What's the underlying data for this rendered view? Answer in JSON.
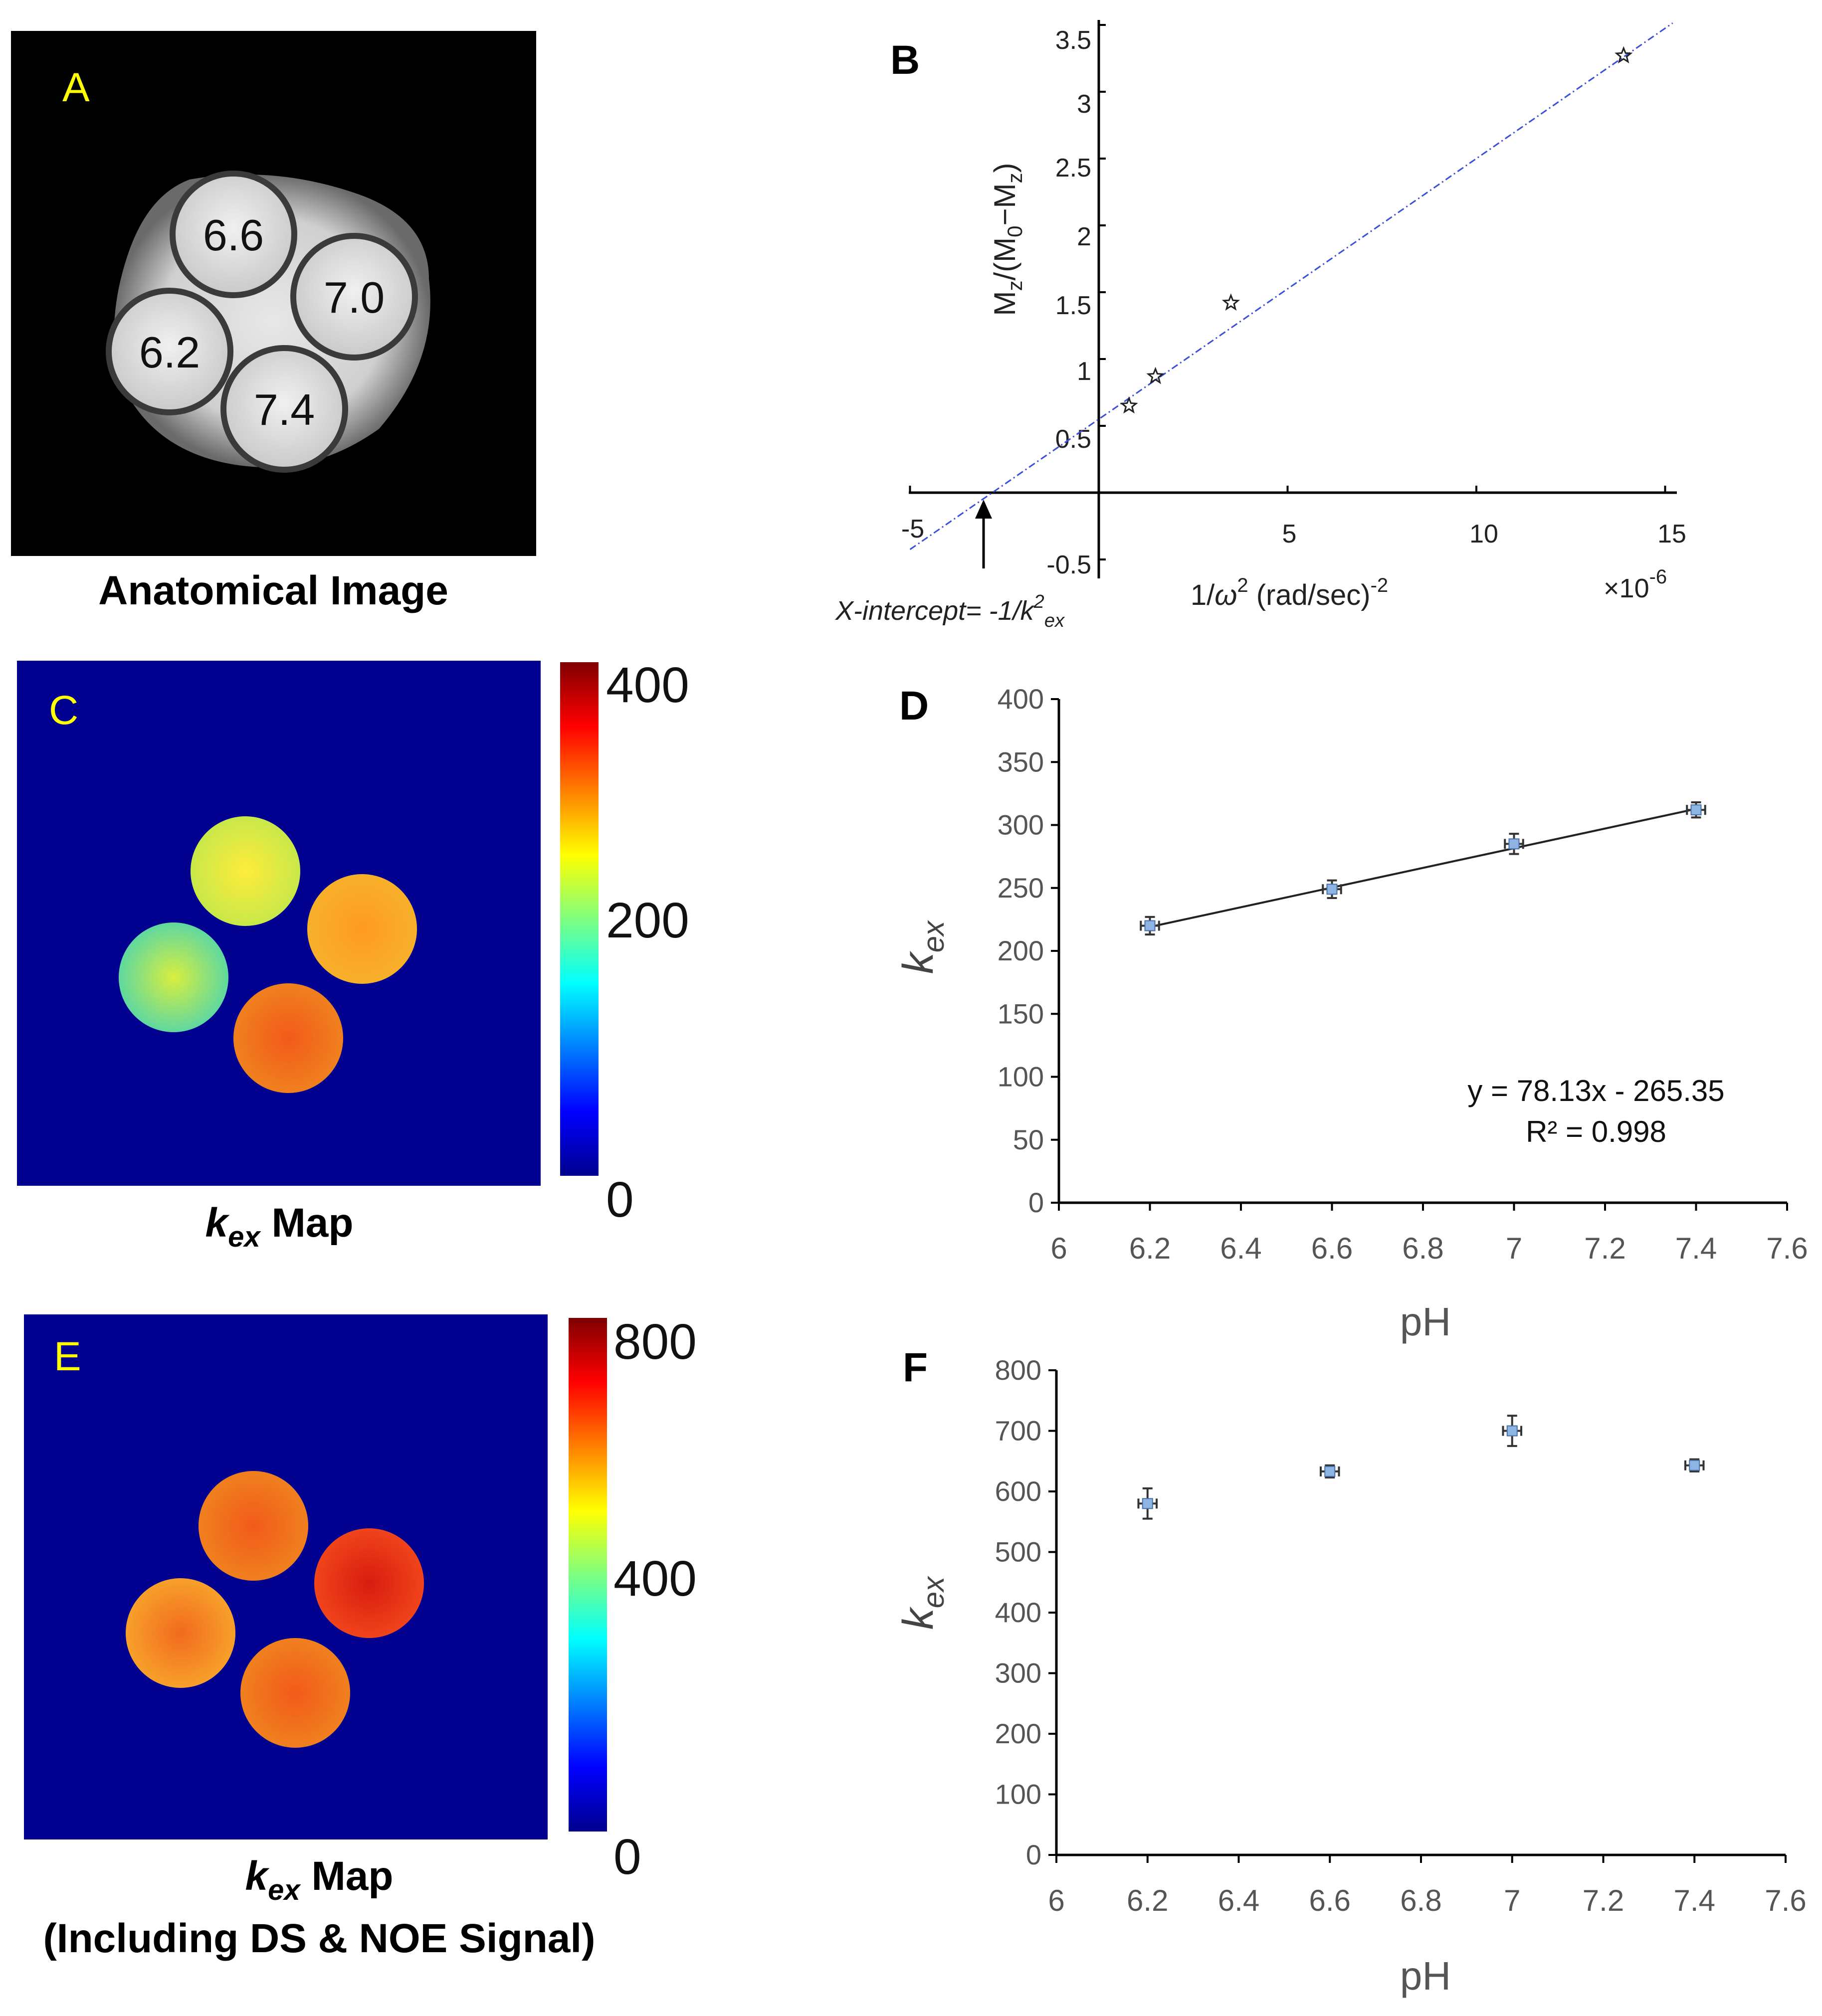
{
  "panels": {
    "A": {
      "letter": "A",
      "caption": "Anatomical Image",
      "vial_labels": [
        "6.6",
        "7.0",
        "6.2",
        "7.4"
      ]
    },
    "B": {
      "letter": "B",
      "y_tick_labels": [
        "3.5",
        "3",
        "2.5",
        "2",
        "1.5",
        "1",
        "0.5",
        "-0.5"
      ],
      "x_tick_labels": [
        "-5",
        "5",
        "10",
        "15"
      ],
      "x_exponent": "×10",
      "x_exponent_power": "-6",
      "annotation_prefix": "X-intercept= -1/k",
      "annotation_sup": "2",
      "annotation_sub": "ex"
    },
    "C": {
      "letter": "C",
      "caption_k": "k",
      "caption_sub": "ex",
      "caption_rest": " Map",
      "colorbar_labels": [
        "400",
        "200",
        "0"
      ]
    },
    "D": {
      "letter": "D",
      "ylabel_k": "k",
      "ylabel_sub": "ex",
      "xlabel": "pH",
      "equation": "y = 78.13x - 265.35",
      "r2": "R² = 0.998"
    },
    "E": {
      "letter": "E",
      "caption_k": "k",
      "caption_sub": "ex",
      "caption_rest": " Map",
      "caption_line2": "(Including DS & NOE Signal)",
      "colorbar_labels": [
        "800",
        "400",
        "0"
      ]
    },
    "F": {
      "letter": "F",
      "ylabel_k": "k",
      "ylabel_sub": "ex",
      "xlabel": "pH"
    }
  },
  "chart_data": [
    {
      "panel": "B",
      "type": "scatter",
      "title": "",
      "xlabel": "1/ω² (rad/sec)⁻²",
      "ylabel": "Mz/(M0−Mz)",
      "x_scale": "×10^-6",
      "xlim": [
        -5,
        15
      ],
      "ylim": [
        -0.5,
        3.5
      ],
      "x": [
        0.8,
        1.5,
        3.5,
        13.9
      ],
      "y": [
        0.65,
        0.87,
        1.42,
        3.27
      ],
      "fit": {
        "slope": 0.195,
        "intercept": 0.55,
        "x_range": [
          -5,
          15.2
        ]
      },
      "series_color": "#3b4fd8"
    },
    {
      "panel": "D",
      "type": "scatter",
      "title": "",
      "xlabel": "pH",
      "ylabel": "kex",
      "xlim": [
        6,
        7.6
      ],
      "ylim": [
        0,
        400
      ],
      "x_ticks": [
        6,
        6.2,
        6.4,
        6.6,
        6.8,
        7,
        7.2,
        7.4,
        7.6
      ],
      "y_ticks": [
        0,
        50,
        100,
        150,
        200,
        250,
        300,
        350,
        400
      ],
      "x": [
        6.2,
        6.6,
        7.0,
        7.4
      ],
      "y": [
        220,
        249,
        285,
        312
      ],
      "y_err": [
        7,
        7,
        8,
        6
      ],
      "x_err": [
        0.02,
        0.02,
        0.02,
        0.02
      ],
      "fit": {
        "slope": 78.13,
        "intercept": -265.35,
        "x_range": [
          6.2,
          7.4
        ]
      }
    },
    {
      "panel": "F",
      "type": "scatter",
      "title": "",
      "xlabel": "pH",
      "ylabel": "kex",
      "xlim": [
        6,
        7.6
      ],
      "ylim": [
        0,
        800
      ],
      "x_ticks": [
        6,
        6.2,
        6.4,
        6.6,
        6.8,
        7,
        7.2,
        7.4,
        7.6
      ],
      "y_ticks": [
        0,
        100,
        200,
        300,
        400,
        500,
        600,
        700,
        800
      ],
      "x": [
        6.2,
        6.6,
        7.0,
        7.4
      ],
      "y": [
        580,
        633,
        700,
        643
      ],
      "y_err": [
        25,
        10,
        25,
        10
      ],
      "x_err": [
        0.02,
        0.02,
        0.02,
        0.02
      ]
    }
  ]
}
